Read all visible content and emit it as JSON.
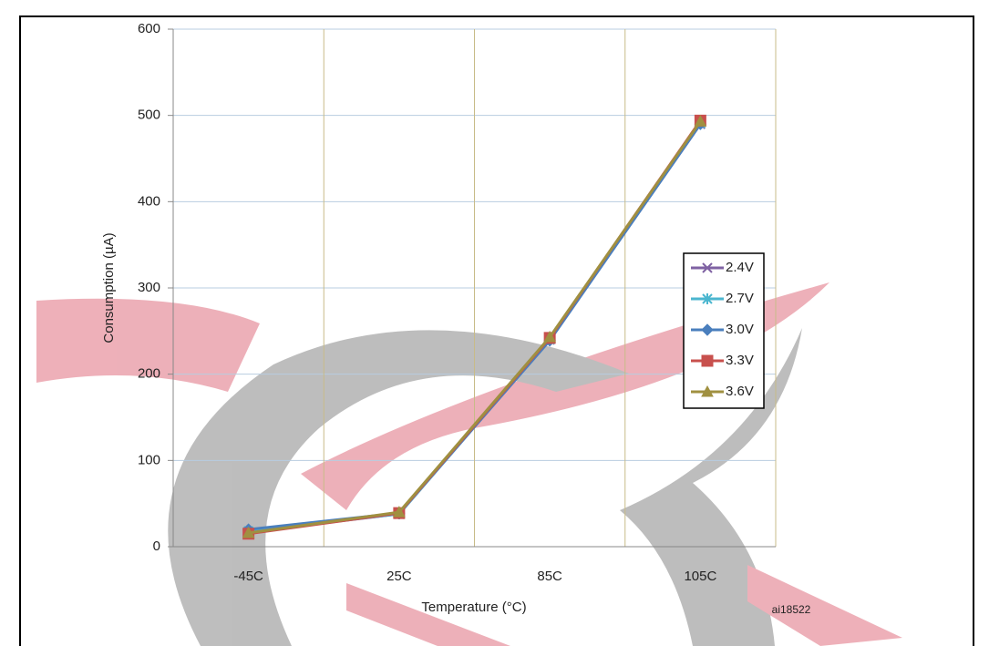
{
  "chart_data": {
    "type": "line",
    "x_label": "Temperature (°C)",
    "y_label": "Consumption (µA)",
    "figure_id": "ai18522",
    "categories": [
      "-45C",
      "25C",
      "85C",
      "105C"
    ],
    "series": [
      {
        "name": "2.4V",
        "color": "#7f62a3",
        "marker": "x",
        "values": [
          17,
          38,
          240,
          490
        ]
      },
      {
        "name": "2.7V",
        "color": "#4bb6cf",
        "marker": "star",
        "values": [
          18,
          38,
          240,
          491
        ]
      },
      {
        "name": "3.0V",
        "color": "#4a7fbd",
        "marker": "diamond",
        "values": [
          20,
          39,
          239,
          490
        ]
      },
      {
        "name": "3.3V",
        "color": "#c8504d",
        "marker": "square",
        "values": [
          15,
          39,
          242,
          494
        ]
      },
      {
        "name": "3.6V",
        "color": "#a09040",
        "marker": "triangle",
        "values": [
          16,
          40,
          243,
          493
        ]
      }
    ],
    "ylim": [
      0,
      600
    ],
    "yticks": [
      0,
      100,
      200,
      300,
      400,
      500,
      600
    ],
    "grid": true,
    "legend": "right"
  }
}
